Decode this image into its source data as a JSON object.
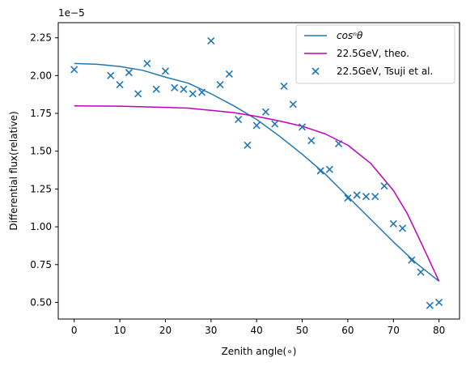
{
  "chart_data": {
    "type": "scatter",
    "title": "",
    "xlabel": "Zenith angle(∘)",
    "ylabel": "Differential flux(relative)",
    "offset_label": "1e−5",
    "xlim": [
      -3.5,
      84.5
    ],
    "ylim": [
      0.39,
      2.35
    ],
    "xticks": [
      0,
      10,
      20,
      30,
      40,
      50,
      60,
      70,
      80
    ],
    "yticks": [
      0.5,
      0.75,
      1.0,
      1.25,
      1.5,
      1.75,
      2.0,
      2.25
    ],
    "ytick_labels": [
      "0.50",
      "0.75",
      "1.00",
      "1.25",
      "1.50",
      "1.75",
      "2.00",
      "2.25"
    ],
    "legend_position": "upper right",
    "series": [
      {
        "name": "cosⁿθ",
        "kind": "line",
        "color": "#1f77b4",
        "x": [
          0,
          5,
          10,
          15,
          20,
          25,
          30,
          35,
          40,
          45,
          50,
          55,
          60,
          65,
          70,
          75,
          80
        ],
        "y": [
          2.08,
          2.075,
          2.06,
          2.035,
          1.99,
          1.95,
          1.88,
          1.8,
          1.71,
          1.6,
          1.48,
          1.35,
          1.2,
          1.05,
          0.9,
          0.76,
          0.64
        ]
      },
      {
        "name": "22.5GeV, theo.",
        "kind": "line",
        "color": "#bf00bf",
        "x": [
          0,
          10,
          20,
          25,
          30,
          35,
          40,
          45,
          50,
          55,
          60,
          65,
          70,
          73,
          76,
          78,
          80
        ],
        "y": [
          1.8,
          1.798,
          1.79,
          1.785,
          1.77,
          1.755,
          1.73,
          1.7,
          1.665,
          1.615,
          1.54,
          1.42,
          1.24,
          1.09,
          0.9,
          0.77,
          0.64
        ]
      },
      {
        "name": "22.5GeV, Tsuji et al.",
        "kind": "scatter",
        "color": "#1f77b4",
        "x": [
          0,
          8,
          10,
          12,
          14,
          16,
          18,
          20,
          22,
          24,
          26,
          28,
          30,
          32,
          34,
          36,
          38,
          40,
          42,
          44,
          46,
          48,
          50,
          52,
          54,
          56,
          58,
          60,
          62,
          64,
          66,
          68,
          70,
          72,
          74,
          76,
          78,
          80
        ],
        "y": [
          2.04,
          2.0,
          1.94,
          2.02,
          1.88,
          2.08,
          1.91,
          2.03,
          1.92,
          1.91,
          1.88,
          1.89,
          2.23,
          1.94,
          2.01,
          1.71,
          1.54,
          1.67,
          1.76,
          1.68,
          1.93,
          1.81,
          1.66,
          1.57,
          1.37,
          1.38,
          1.55,
          1.19,
          1.21,
          1.2,
          1.2,
          1.27,
          1.02,
          0.99,
          0.78,
          0.7,
          0.48,
          0.5
        ]
      }
    ]
  }
}
